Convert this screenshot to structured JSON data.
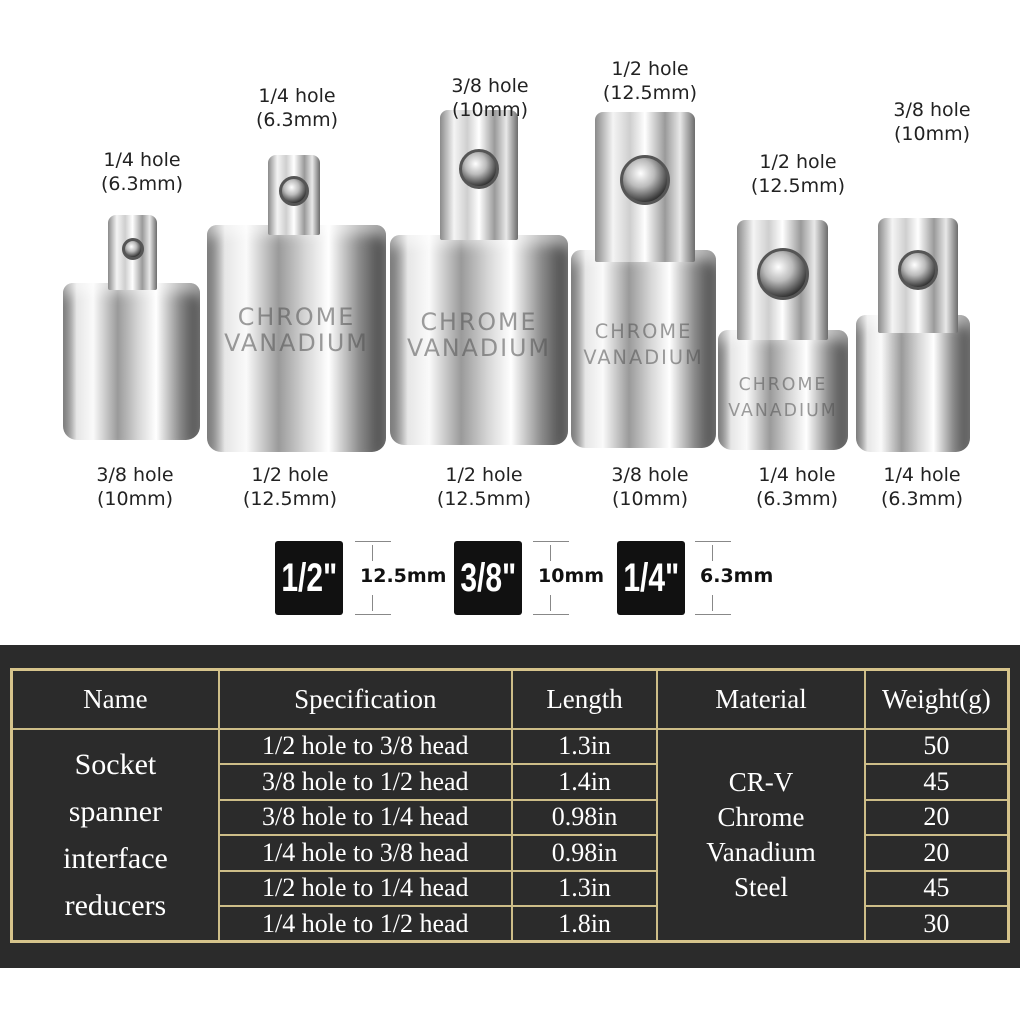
{
  "adapters": [
    {
      "top": [
        "1/4 hole",
        "(6.3mm)"
      ],
      "bottom": [
        "3/8 hole",
        "(10mm)"
      ],
      "engraving": []
    },
    {
      "top": [
        "1/4 hole",
        "(6.3mm)"
      ],
      "bottom": [
        "1/2 hole",
        "(12.5mm)"
      ],
      "engraving": [
        "CHROME",
        "VANADIUM"
      ]
    },
    {
      "top": [
        "3/8 hole",
        "(10mm)"
      ],
      "bottom": [
        "1/2 hole",
        "(12.5mm)"
      ],
      "engraving": [
        "CHROME",
        "VANADIUM"
      ]
    },
    {
      "top": [
        "1/2 hole",
        "(12.5mm)"
      ],
      "bottom": [
        "3/8 hole",
        "(10mm)"
      ],
      "engraving": [
        "CHROME",
        "VANADIUM"
      ]
    },
    {
      "top": [
        "1/2 hole",
        "(12.5mm)"
      ],
      "bottom": [
        "1/4 hole",
        "(6.3mm)"
      ],
      "engraving": [
        "CHROME",
        "VANADIUM"
      ]
    },
    {
      "top": [
        "3/8 hole",
        "(10mm)"
      ],
      "bottom": [
        "1/4 hole",
        "(6.3mm)"
      ],
      "engraving": []
    }
  ],
  "sizes": [
    {
      "inch": "1/2\"",
      "mm": "12.5mm"
    },
    {
      "inch": "3/8\"",
      "mm": "10mm"
    },
    {
      "inch": "1/4\"",
      "mm": "6.3mm"
    }
  ],
  "table": {
    "headers": [
      "Name",
      "Specification",
      "Length",
      "Material",
      "Weight(g)"
    ],
    "name": [
      "Socket",
      "spanner",
      "interface",
      "reducers"
    ],
    "material": [
      "CR-V",
      "Chrome",
      "Vanadium",
      "Steel"
    ],
    "rows": [
      {
        "spec": "1/2 hole to 3/8 head",
        "length": "1.3in",
        "weight": "50"
      },
      {
        "spec": "3/8 hole to 1/2 head",
        "length": "1.4in",
        "weight": "45"
      },
      {
        "spec": "3/8 hole to 1/4 head",
        "length": "0.98in",
        "weight": "20"
      },
      {
        "spec": "1/4 hole to 3/8 head",
        "length": "0.98in",
        "weight": "20"
      },
      {
        "spec": "1/2 hole to 1/4 head",
        "length": "1.3in",
        "weight": "45"
      },
      {
        "spec": "1/4 hole to 1/2 head",
        "length": "1.8in",
        "weight": "30"
      }
    ]
  },
  "colors": {
    "panel": "#2b2b2b",
    "border": "#d6c48c",
    "badge": "#111111"
  }
}
